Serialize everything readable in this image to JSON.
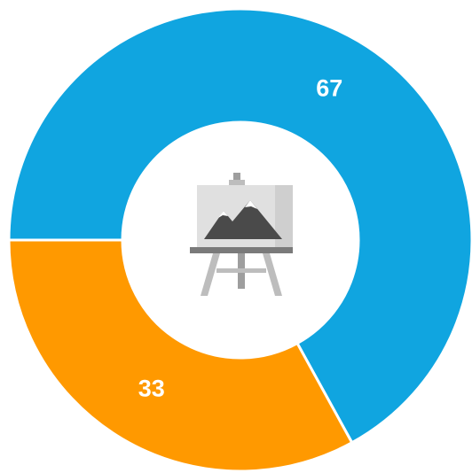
{
  "chart_data": {
    "type": "donut",
    "values": [
      67,
      33
    ],
    "colors": [
      "#10a5e0",
      "#ff9900"
    ]
  }
}
